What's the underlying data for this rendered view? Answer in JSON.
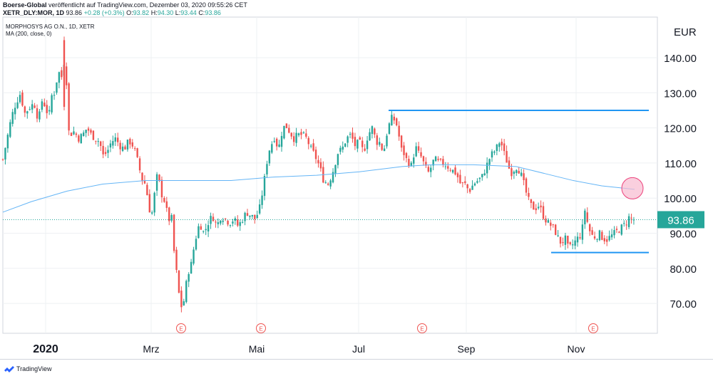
{
  "header": {
    "publisher": "Boerse-Global",
    "published_text": "veröffentlicht auf TradingView.com, Dezember 03, 2020 09:55:26 CET",
    "symbol": "XETR_DLY:MOR, 1D",
    "last": "93.86",
    "change": "+0.28 (+0.3%)",
    "ohlc": {
      "o_label": "O:",
      "o": "93.82",
      "h_label": "H:",
      "h": "94.30",
      "l_label": "L:",
      "l": "93.44",
      "c_label": "C:",
      "c": "93.86"
    }
  },
  "legend": {
    "title": "MORPHOSYS AG O.N., 1D, XETR",
    "indicator": "MA (200, close, 0)"
  },
  "footer": {
    "brand": "TradingView"
  },
  "colors": {
    "up": "#26a69a",
    "down": "#ef5350",
    "ma": "#64b5f6",
    "trendline": "#2196f3",
    "price_tag": "#26a69a",
    "circle_fill": "#f8bbd0",
    "circle_stroke": "#ec407a",
    "grid": "#eef0f3",
    "axis_text": "#131722",
    "event": "#ef5350"
  },
  "chart_data": {
    "type": "candlestick",
    "title": "MORPHOSYS AG O.N., 1D, XETR",
    "currency": "EUR",
    "x_labels": [
      "2020",
      "Mrz",
      "Mai",
      "Jul",
      "Sep",
      "Nov"
    ],
    "y_ticks": [
      70,
      80,
      90,
      100,
      110,
      120,
      130,
      140
    ],
    "y_tick_labels": [
      "70.00",
      "80.00",
      "90.00",
      "100.00",
      "110.00",
      "120.00",
      "130.00",
      "140.00"
    ],
    "ylim": [
      62,
      151
    ],
    "last_price": 93.86,
    "last_price_label": "93.86",
    "events": [
      "E",
      "E",
      "E",
      "E"
    ],
    "close_path": [
      [
        0,
        111
      ],
      [
        6,
        117
      ],
      [
        12,
        123
      ],
      [
        18,
        127
      ],
      [
        25,
        130
      ],
      [
        30,
        124
      ],
      [
        38,
        126
      ],
      [
        44,
        127
      ],
      [
        50,
        122
      ],
      [
        56,
        129
      ],
      [
        60,
        125
      ],
      [
        66,
        124
      ],
      [
        70,
        132
      ],
      [
        72,
        130
      ],
      [
        78,
        136
      ],
      [
        84,
        134
      ],
      [
        88,
        145
      ],
      [
        90,
        125
      ],
      [
        93,
        118
      ],
      [
        100,
        119
      ],
      [
        106,
        117
      ],
      [
        112,
        118
      ],
      [
        118,
        120
      ],
      [
        124,
        118
      ],
      [
        130,
        117
      ],
      [
        136,
        116
      ],
      [
        140,
        112
      ],
      [
        146,
        113
      ],
      [
        152,
        116
      ],
      [
        158,
        117
      ],
      [
        164,
        115
      ],
      [
        170,
        114
      ],
      [
        176,
        116
      ],
      [
        180,
        116
      ],
      [
        186,
        113
      ],
      [
        192,
        108
      ],
      [
        196,
        105
      ],
      [
        200,
        104
      ],
      [
        204,
        99
      ],
      [
        208,
        94
      ],
      [
        212,
        100
      ],
      [
        216,
        106
      ],
      [
        220,
        104
      ],
      [
        224,
        100
      ],
      [
        228,
        99
      ],
      [
        232,
        93
      ],
      [
        236,
        96
      ],
      [
        240,
        85
      ],
      [
        244,
        78
      ],
      [
        248,
        71
      ],
      [
        252,
        68
      ],
      [
        256,
        74
      ],
      [
        260,
        79
      ],
      [
        264,
        81
      ],
      [
        268,
        86
      ],
      [
        272,
        90
      ],
      [
        276,
        93
      ],
      [
        282,
        90
      ],
      [
        288,
        93
      ],
      [
        294,
        95
      ],
      [
        300,
        92
      ],
      [
        306,
        95
      ],
      [
        312,
        94
      ],
      [
        318,
        93
      ],
      [
        324,
        94
      ],
      [
        330,
        92
      ],
      [
        336,
        94
      ],
      [
        342,
        96
      ],
      [
        348,
        95
      ],
      [
        354,
        94
      ],
      [
        360,
        97
      ],
      [
        366,
        104
      ],
      [
        370,
        110
      ],
      [
        374,
        114
      ],
      [
        378,
        116
      ],
      [
        382,
        118
      ],
      [
        386,
        113
      ],
      [
        390,
        118
      ],
      [
        396,
        121
      ],
      [
        402,
        119
      ],
      [
        408,
        117
      ],
      [
        414,
        118
      ],
      [
        420,
        118
      ],
      [
        426,
        117
      ],
      [
        432,
        114
      ],
      [
        438,
        112
      ],
      [
        444,
        109
      ],
      [
        450,
        105
      ],
      [
        456,
        104
      ],
      [
        462,
        107
      ],
      [
        466,
        110
      ],
      [
        470,
        113
      ],
      [
        476,
        114
      ],
      [
        482,
        117
      ],
      [
        488,
        118
      ],
      [
        494,
        115
      ],
      [
        500,
        116
      ],
      [
        506,
        113
      ],
      [
        512,
        118
      ],
      [
        518,
        120
      ],
      [
        524,
        116
      ],
      [
        528,
        116
      ],
      [
        534,
        113
      ],
      [
        538,
        118
      ],
      [
        542,
        121
      ],
      [
        546,
        123
      ],
      [
        550,
        122
      ],
      [
        554,
        120
      ],
      [
        558,
        114
      ],
      [
        562,
        113
      ],
      [
        566,
        111
      ],
      [
        570,
        110
      ],
      [
        574,
        109
      ],
      [
        578,
        115
      ],
      [
        582,
        113
      ],
      [
        586,
        112
      ],
      [
        590,
        110
      ],
      [
        594,
        108
      ],
      [
        598,
        107
      ],
      [
        602,
        110
      ],
      [
        606,
        111
      ],
      [
        612,
        110
      ],
      [
        618,
        110
      ],
      [
        624,
        109
      ],
      [
        630,
        108
      ],
      [
        636,
        107
      ],
      [
        642,
        104
      ],
      [
        648,
        104
      ],
      [
        654,
        102
      ],
      [
        660,
        104
      ],
      [
        666,
        105
      ],
      [
        672,
        106
      ],
      [
        676,
        108
      ],
      [
        680,
        110
      ],
      [
        684,
        112
      ],
      [
        688,
        113
      ],
      [
        692,
        114
      ],
      [
        696,
        116
      ],
      [
        700,
        115
      ],
      [
        704,
        112
      ],
      [
        708,
        110
      ],
      [
        712,
        107
      ],
      [
        716,
        108
      ],
      [
        720,
        109
      ],
      [
        724,
        108
      ],
      [
        728,
        106
      ],
      [
        732,
        103
      ],
      [
        736,
        100
      ],
      [
        740,
        98
      ],
      [
        746,
        97
      ],
      [
        752,
        98
      ],
      [
        758,
        95
      ],
      [
        764,
        93
      ],
      [
        770,
        92
      ],
      [
        776,
        90
      ],
      [
        780,
        88
      ],
      [
        784,
        87
      ],
      [
        788,
        89
      ],
      [
        792,
        86
      ],
      [
        796,
        86
      ],
      [
        800,
        87
      ],
      [
        804,
        88
      ],
      [
        808,
        89
      ],
      [
        812,
        90
      ],
      [
        816,
        97
      ],
      [
        820,
        93
      ],
      [
        824,
        90
      ],
      [
        828,
        89
      ],
      [
        832,
        89
      ],
      [
        836,
        90
      ],
      [
        840,
        89
      ],
      [
        846,
        88
      ],
      [
        852,
        89
      ],
      [
        858,
        90
      ],
      [
        864,
        91
      ],
      [
        870,
        92
      ],
      [
        874,
        93
      ],
      [
        878,
        94.5
      ],
      [
        882,
        94
      ],
      [
        886,
        93.86
      ]
    ],
    "ma200": [
      [
        0,
        96
      ],
      [
        40,
        99
      ],
      [
        90,
        102
      ],
      [
        140,
        104
      ],
      [
        200,
        105
      ],
      [
        260,
        105
      ],
      [
        320,
        105
      ],
      [
        380,
        106
      ],
      [
        440,
        106.5
      ],
      [
        500,
        107.5
      ],
      [
        560,
        109
      ],
      [
        600,
        109.5
      ],
      [
        660,
        109.5
      ],
      [
        720,
        109
      ],
      [
        760,
        107
      ],
      [
        800,
        105
      ],
      [
        840,
        103.5
      ],
      [
        886,
        102.5
      ]
    ],
    "trendlines": [
      {
        "label": "resistance",
        "y": 125
      },
      {
        "label": "support",
        "y": 84.5
      }
    ],
    "highlight_circle": {
      "y": 102.8
    }
  }
}
